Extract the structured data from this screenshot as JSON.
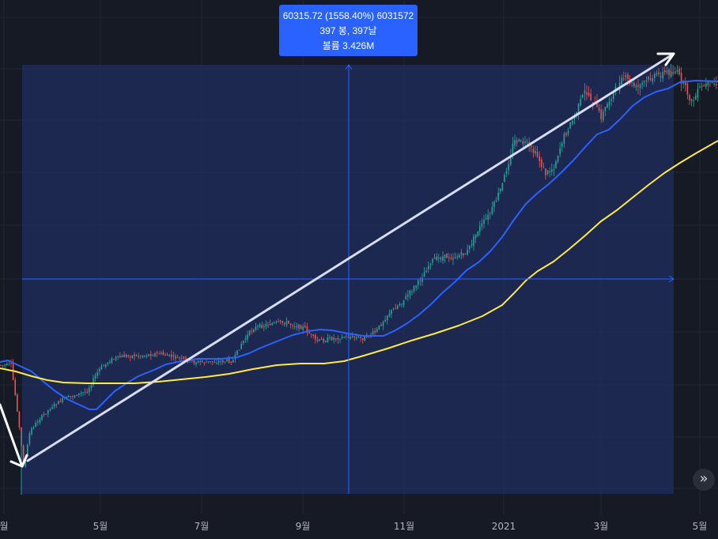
{
  "tooltip": {
    "line1": "60315.72 (1558.40%) 6031572",
    "line2": "397 봉, 397날",
    "line3": "볼륨 3.426M"
  },
  "scroll_button": {
    "icon": "double-chevron-right-icon",
    "glyph": "»"
  },
  "colors": {
    "background": "#161a25",
    "grid": "#232735",
    "measure_zone": "#1e2c5a",
    "measure_line": "#2962ff",
    "up_candle": "#26a69a",
    "down_candle": "#ef5350",
    "ma_fast": "#2962ff",
    "ma_slow": "#ffeb3b",
    "trend_line": "#d7dcf0"
  },
  "chart_data": {
    "type": "candlestick",
    "x_axis": {
      "tick_labels": [
        "월",
        "5월",
        "7월",
        "9월",
        "11월",
        "2021",
        "3월",
        "5월"
      ]
    },
    "series": [
      {
        "name": "",
        "type": "moving_average",
        "color": "#2962ff",
        "values": [
          [
            0,
            458
          ],
          [
            10,
            456
          ],
          [
            25,
            463
          ],
          [
            40,
            470
          ],
          [
            55,
            483
          ],
          [
            70,
            495
          ],
          [
            85,
            505
          ],
          [
            100,
            512
          ],
          [
            113,
            518
          ],
          [
            122,
            518
          ],
          [
            130,
            510
          ],
          [
            145,
            495
          ],
          [
            160,
            485
          ],
          [
            175,
            476
          ],
          [
            195,
            468
          ],
          [
            210,
            461
          ],
          [
            230,
            457
          ],
          [
            250,
            454
          ],
          [
            280,
            454
          ],
          [
            300,
            452
          ],
          [
            315,
            447
          ],
          [
            330,
            440
          ],
          [
            350,
            432
          ],
          [
            370,
            424
          ],
          [
            390,
            419
          ],
          [
            405,
            417
          ],
          [
            420,
            418
          ],
          [
            440,
            422
          ],
          [
            460,
            425
          ],
          [
            485,
            425
          ],
          [
            500,
            418
          ],
          [
            515,
            409
          ],
          [
            530,
            398
          ],
          [
            545,
            385
          ],
          [
            560,
            370
          ],
          [
            575,
            357
          ],
          [
            590,
            342
          ],
          [
            605,
            332
          ],
          [
            620,
            318
          ],
          [
            635,
            300
          ],
          [
            650,
            278
          ],
          [
            665,
            258
          ],
          [
            680,
            244
          ],
          [
            695,
            232
          ],
          [
            710,
            218
          ],
          [
            725,
            203
          ],
          [
            740,
            186
          ],
          [
            755,
            170
          ],
          [
            770,
            164
          ],
          [
            785,
            150
          ],
          [
            800,
            134
          ],
          [
            815,
            123
          ],
          [
            830,
            116
          ],
          [
            845,
            112
          ],
          [
            860,
            104
          ],
          [
            880,
            102
          ],
          [
            908,
            103
          ]
        ]
      },
      {
        "name": "",
        "type": "moving_average",
        "color": "#ffeb3b",
        "values": [
          [
            0,
            466
          ],
          [
            20,
            470
          ],
          [
            40,
            476
          ],
          [
            60,
            481
          ],
          [
            80,
            484
          ],
          [
            110,
            485
          ],
          [
            140,
            485
          ],
          [
            170,
            485
          ],
          [
            200,
            483
          ],
          [
            230,
            480
          ],
          [
            260,
            477
          ],
          [
            290,
            473
          ],
          [
            320,
            467
          ],
          [
            350,
            462
          ],
          [
            380,
            460
          ],
          [
            410,
            460
          ],
          [
            435,
            457
          ],
          [
            460,
            450
          ],
          [
            490,
            441
          ],
          [
            520,
            431
          ],
          [
            550,
            422
          ],
          [
            580,
            412
          ],
          [
            610,
            400
          ],
          [
            635,
            386
          ],
          [
            650,
            371
          ],
          [
            665,
            355
          ],
          [
            680,
            343
          ],
          [
            700,
            331
          ],
          [
            720,
            315
          ],
          [
            740,
            298
          ],
          [
            760,
            280
          ],
          [
            780,
            266
          ],
          [
            800,
            250
          ],
          [
            820,
            234
          ],
          [
            840,
            219
          ],
          [
            860,
            206
          ],
          [
            880,
            194
          ],
          [
            908,
            178
          ]
        ]
      }
    ],
    "price_path": [
      [
        0,
        462
      ],
      [
        14,
        462
      ],
      [
        22,
        520
      ],
      [
        30,
        592
      ],
      [
        38,
        545
      ],
      [
        50,
        530
      ],
      [
        65,
        515
      ],
      [
        80,
        505
      ],
      [
        95,
        500
      ],
      [
        110,
        495
      ],
      [
        125,
        468
      ],
      [
        140,
        455
      ],
      [
        160,
        450
      ],
      [
        180,
        450
      ],
      [
        200,
        447
      ],
      [
        220,
        452
      ],
      [
        245,
        458
      ],
      [
        270,
        458
      ],
      [
        295,
        456
      ],
      [
        305,
        435
      ],
      [
        320,
        415
      ],
      [
        340,
        410
      ],
      [
        360,
        408
      ],
      [
        385,
        415
      ],
      [
        400,
        432
      ],
      [
        420,
        428
      ],
      [
        440,
        426
      ],
      [
        460,
        428
      ],
      [
        475,
        420
      ],
      [
        490,
        398
      ],
      [
        510,
        380
      ],
      [
        530,
        356
      ],
      [
        545,
        330
      ],
      [
        560,
        325
      ],
      [
        575,
        325
      ],
      [
        590,
        320
      ],
      [
        605,
        290
      ],
      [
        620,
        270
      ],
      [
        635,
        235
      ],
      [
        650,
        178
      ],
      [
        665,
        182
      ],
      [
        680,
        198
      ],
      [
        690,
        220
      ],
      [
        700,
        212
      ],
      [
        712,
        175
      ],
      [
        725,
        150
      ],
      [
        740,
        115
      ],
      [
        750,
        128
      ],
      [
        760,
        148
      ],
      [
        775,
        118
      ],
      [
        790,
        98
      ],
      [
        805,
        112
      ],
      [
        820,
        100
      ],
      [
        840,
        92
      ],
      [
        855,
        90
      ],
      [
        865,
        108
      ],
      [
        875,
        130
      ],
      [
        885,
        112
      ],
      [
        900,
        105
      ],
      [
        908,
        108
      ]
    ],
    "measure": {
      "x_start": 28,
      "x_end": 852,
      "y_start": 82,
      "y_end": 625,
      "crosshair_x": 441,
      "crosshair_y": 353,
      "price_change": 60315.72,
      "percent_change": 1558.4,
      "ticks_value": 6031572,
      "bars": 397,
      "days": 397,
      "volume": "3.426M"
    },
    "trend_line": {
      "from": [
        35,
        583
      ],
      "to": [
        852,
        68
      ]
    }
  }
}
